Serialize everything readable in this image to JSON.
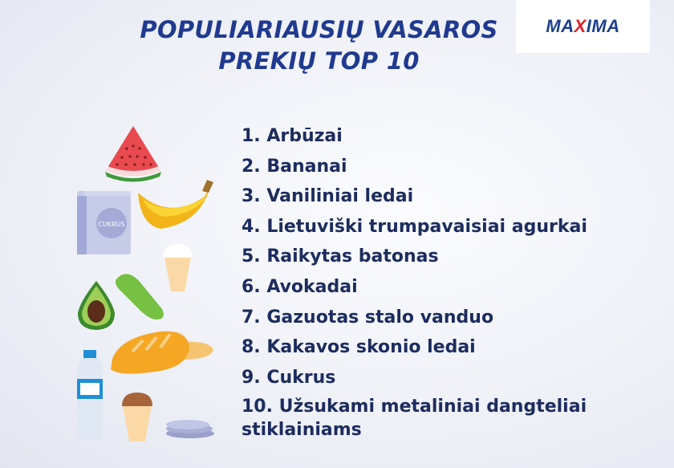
{
  "title": {
    "line1": "POPULIARIAUSIŲ VASAROS",
    "line2": "PREKIŲ TOP 10"
  },
  "logo": {
    "text_before": "MA",
    "text_x": "X",
    "text_after": "IMA",
    "brand_color": "#1d3f8f",
    "accent_color": "#e41e26"
  },
  "items": [
    "1. Arbūzai",
    "2. Bananai",
    "3. Vaniliniai ledai",
    "4. Lietuviški trumpavaisiai agurkai",
    "5. Raikytas batonas",
    "6. Avokadai",
    "7. Gazuotas stalo vanduo",
    "8. Kakavos skonio ledai",
    "9. Cukrus",
    "10. Užsukami metaliniai dangteliai stiklainiams"
  ],
  "illustrations": {
    "sugar_bag_label": "CUKRUS"
  },
  "colors": {
    "title": "#1f3a8f",
    "list_text": "#1c2c5e"
  }
}
